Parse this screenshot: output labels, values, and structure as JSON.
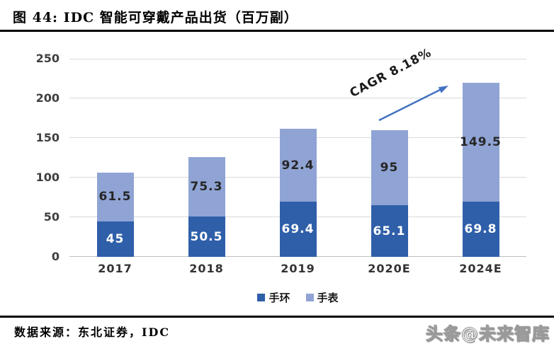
{
  "header": {
    "figure_label_title": "图 44: IDC 智能可穿戴产品出货（百万副）"
  },
  "chart_data": {
    "type": "bar",
    "stacked": true,
    "title": "IDC 智能可穿戴产品出货（百万副）",
    "categories": [
      "2017",
      "2018",
      "2019",
      "2020E",
      "2024E"
    ],
    "series": [
      {
        "name": "手环",
        "color": "#2f5fa9",
        "label_color": "#ffffff",
        "values": [
          45,
          50.5,
          69.4,
          65.1,
          69.8
        ]
      },
      {
        "name": "手表",
        "color": "#8fa4d4",
        "label_color": "#262626",
        "values": [
          61.5,
          75.3,
          92.4,
          95,
          149.5
        ]
      }
    ],
    "ylim": [
      0,
      250
    ],
    "yticks": [
      0,
      50,
      100,
      150,
      200,
      250
    ],
    "grid": true,
    "legend_position": "bottom",
    "annotation": {
      "text": "CAGR 8.18%",
      "arrow_color": "#4472c4"
    }
  },
  "colors": {
    "grid": "#d9d9d9",
    "axis_text": "#404040",
    "arrow_blue": "#4472c4"
  },
  "footer": {
    "source": "数据来源：东北证券，IDC",
    "watermark": "头条@未来智库"
  }
}
